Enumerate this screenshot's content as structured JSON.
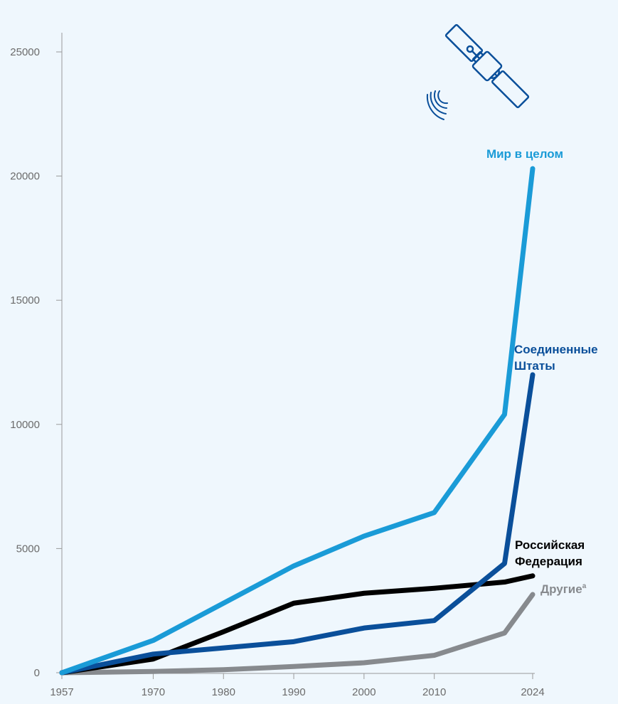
{
  "chart_data": {
    "type": "line",
    "x_ticks": [
      "1957",
      "1970",
      "1980",
      "1990",
      "2000",
      "2010",
      "2024"
    ],
    "y_ticks": [
      "0",
      "5000",
      "10000",
      "15000",
      "20000",
      "25000"
    ],
    "ylim": [
      0,
      25000
    ],
    "grid": false,
    "series": [
      {
        "name": "Мир в целом",
        "color": "#1a9bd7",
        "points": [
          [
            1957,
            0
          ],
          [
            1970,
            1300
          ],
          [
            1980,
            2800
          ],
          [
            1990,
            4300
          ],
          [
            2000,
            5500
          ],
          [
            2010,
            6450
          ],
          [
            2020,
            10400
          ],
          [
            2024,
            20300
          ]
        ]
      },
      {
        "name": "Соединенные Штаты",
        "color": "#0a4f9a",
        "points": [
          [
            1957,
            0
          ],
          [
            1970,
            750
          ],
          [
            1980,
            1000
          ],
          [
            1990,
            1250
          ],
          [
            2000,
            1800
          ],
          [
            2010,
            2100
          ],
          [
            2020,
            4400
          ],
          [
            2024,
            12000
          ]
        ]
      },
      {
        "name": "Российская Федерация",
        "color": "#000000",
        "points": [
          [
            1957,
            0
          ],
          [
            1970,
            550
          ],
          [
            1980,
            1650
          ],
          [
            1990,
            2800
          ],
          [
            2000,
            3200
          ],
          [
            2010,
            3400
          ],
          [
            2020,
            3650
          ],
          [
            2024,
            3900
          ]
        ]
      },
      {
        "name": "Другие",
        "name_suffix": "a",
        "color": "#878a8e",
        "points": [
          [
            1957,
            0
          ],
          [
            1970,
            50
          ],
          [
            1980,
            120
          ],
          [
            1990,
            250
          ],
          [
            2000,
            400
          ],
          [
            2010,
            700
          ],
          [
            2020,
            1600
          ],
          [
            2024,
            3150
          ]
        ]
      }
    ],
    "labels": {
      "world": "Мир в целом",
      "us_line1": "Соединенные",
      "us_line2": "Штаты",
      "ru_line1": "Российская",
      "ru_line2": "Федерация",
      "other": "Другие",
      "other_sup": "a"
    }
  },
  "icons": {
    "decoration": "satellite-icon"
  }
}
